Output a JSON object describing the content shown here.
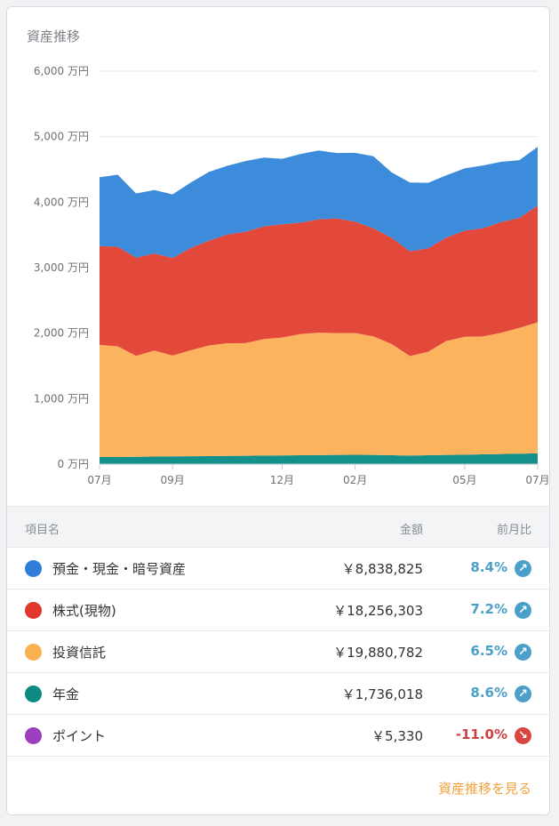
{
  "title": "資産推移",
  "chart_data": {
    "type": "area",
    "stacked": true,
    "y_unit": "万円",
    "ylim": [
      0,
      6000
    ],
    "y_ticks": [
      "6,000 万円",
      "5,000 万円",
      "4,000 万円",
      "3,000 万円",
      "2,000 万円",
      "1,000 万円",
      "0 万円"
    ],
    "y_tick_values": [
      6000,
      5000,
      4000,
      3000,
      2000,
      1000,
      0
    ],
    "x_ticks": [
      "07月",
      "09月",
      "12月",
      "02月",
      "05月",
      "07月"
    ],
    "x_tick_positions": [
      0,
      2,
      5,
      7,
      10,
      12
    ],
    "x": [
      0,
      0.5,
      1,
      1.5,
      2,
      2.5,
      3,
      3.5,
      4,
      4.5,
      5,
      5.5,
      6,
      6.5,
      7,
      7.5,
      8,
      8.5,
      9,
      9.5,
      10,
      10.5,
      11,
      11.5,
      12
    ],
    "grid": true,
    "series": [
      {
        "name": "年金",
        "color": "#13908a",
        "values": [
          110,
          108,
          112,
          115,
          118,
          120,
          122,
          125,
          128,
          130,
          132,
          135,
          138,
          140,
          142,
          140,
          135,
          130,
          135,
          140,
          145,
          150,
          155,
          160,
          165
        ]
      },
      {
        "name": "投資信託",
        "color": "#fbb35e",
        "values": [
          1710,
          1690,
          1540,
          1620,
          1540,
          1620,
          1690,
          1720,
          1720,
          1780,
          1800,
          1850,
          1870,
          1860,
          1860,
          1810,
          1700,
          1520,
          1580,
          1740,
          1800,
          1800,
          1850,
          1920,
          2000
        ]
      },
      {
        "name": "株式(現物)",
        "color": "#e2493b",
        "values": [
          1510,
          1520,
          1500,
          1480,
          1490,
          1560,
          1600,
          1660,
          1700,
          1720,
          1730,
          1700,
          1730,
          1750,
          1700,
          1650,
          1620,
          1600,
          1580,
          1580,
          1620,
          1650,
          1690,
          1680,
          1780
        ]
      },
      {
        "name": "預金・現金・暗号資産",
        "color": "#3d8bdb",
        "values": [
          1050,
          1100,
          980,
          970,
          970,
          1000,
          1050,
          1050,
          1080,
          1050,
          1000,
          1050,
          1050,
          1000,
          1050,
          1100,
          1000,
          1050,
          1000,
          950,
          950,
          960,
          920,
          880,
          900
        ]
      }
    ]
  },
  "table": {
    "headers": {
      "name": "項目名",
      "amount": "金額",
      "change": "前月比"
    },
    "rows": [
      {
        "label": "預金・現金・暗号資産",
        "amount": "￥8,838,825",
        "change": "8.4%",
        "direction": "up",
        "color": "#2f7fd9"
      },
      {
        "label": "株式(現物)",
        "amount": "￥18,256,303",
        "change": "7.2%",
        "direction": "up",
        "color": "#e2372c"
      },
      {
        "label": "投資信託",
        "amount": "￥19,880,782",
        "change": "6.5%",
        "direction": "up",
        "color": "#fbb04f"
      },
      {
        "label": "年金",
        "amount": "￥1,736,018",
        "change": "8.6%",
        "direction": "up",
        "color": "#0c8a83"
      },
      {
        "label": "ポイント",
        "amount": "￥5,330",
        "change": "-11.0%",
        "direction": "down",
        "color": "#9b3fbf"
      }
    ]
  },
  "colors": {
    "up": "#4aa0c8",
    "down": "#d04040",
    "up_icon_bg": "#4aa0c8",
    "down_icon_bg": "#d9463f",
    "link": "#f2a13b"
  },
  "icons": {
    "up": "arrow-up-right-icon",
    "down": "arrow-down-right-icon"
  },
  "footer": {
    "link_label": "資産推移を見る"
  }
}
